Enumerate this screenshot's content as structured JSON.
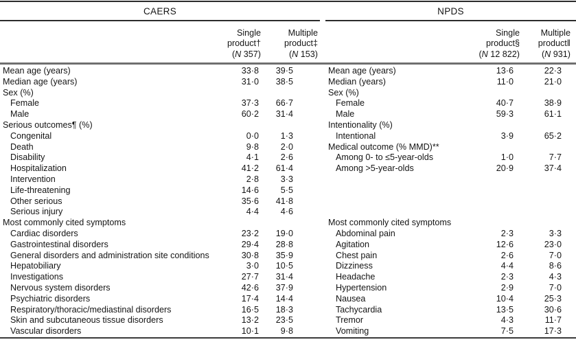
{
  "table": {
    "panels": [
      {
        "id": "caers",
        "title": "CAERS",
        "columns": [
          {
            "line1": "Single",
            "line2": "product†",
            "n_open": "(",
            "n_sym": "N",
            "n_rest": " 357)"
          },
          {
            "line1": "Multiple",
            "line2": "product‡",
            "n_open": "(",
            "n_sym": "N",
            "n_rest": " 153)"
          }
        ],
        "rows": [
          {
            "label": "Mean age (years)",
            "indent": 0,
            "values": [
              "33·8",
              "39·5"
            ]
          },
          {
            "label": "Median age (years)",
            "indent": 0,
            "values": [
              "31·0",
              "38·5"
            ]
          },
          {
            "label": "Sex (%)",
            "indent": 0,
            "values": [
              "",
              ""
            ]
          },
          {
            "label": "Female",
            "indent": 1,
            "values": [
              "37·3",
              "66·7"
            ]
          },
          {
            "label": "Male",
            "indent": 1,
            "values": [
              "60·2",
              "31·4"
            ]
          },
          {
            "label": "Serious outcomes¶ (%)",
            "indent": 0,
            "values": [
              "",
              ""
            ]
          },
          {
            "label": "Congenital",
            "indent": 1,
            "values": [
              "0·0",
              "1·3"
            ]
          },
          {
            "label": "Death",
            "indent": 1,
            "values": [
              "9·8",
              "2·0"
            ]
          },
          {
            "label": "Disability",
            "indent": 1,
            "values": [
              "4·1",
              "2·6"
            ]
          },
          {
            "label": "Hospitalization",
            "indent": 1,
            "values": [
              "41·2",
              "61·4"
            ]
          },
          {
            "label": "Intervention",
            "indent": 1,
            "values": [
              "2·8",
              "3·3"
            ]
          },
          {
            "label": "Life-threatening",
            "indent": 1,
            "values": [
              "14·6",
              "5·5"
            ]
          },
          {
            "label": "Other serious",
            "indent": 1,
            "values": [
              "35·6",
              "41·8"
            ]
          },
          {
            "label": "Serious injury",
            "indent": 1,
            "values": [
              "4·4",
              "4·6"
            ]
          },
          {
            "label": "Most commonly cited symptoms",
            "indent": 0,
            "values": [
              "",
              ""
            ]
          },
          {
            "label": "Cardiac disorders",
            "indent": 1,
            "values": [
              "23·2",
              "19·0"
            ]
          },
          {
            "label": "Gastrointestinal disorders",
            "indent": 1,
            "values": [
              "29·4",
              "28·8"
            ]
          },
          {
            "label": "General disorders and administration site conditions",
            "indent": 1,
            "values": [
              "30·8",
              "35·9"
            ]
          },
          {
            "label": "Hepatobiliary",
            "indent": 1,
            "values": [
              "3·0",
              "10·5"
            ]
          },
          {
            "label": "Investigations",
            "indent": 1,
            "values": [
              "27·7",
              "31·4"
            ]
          },
          {
            "label": "Nervous system disorders",
            "indent": 1,
            "values": [
              "42·6",
              "37·9"
            ]
          },
          {
            "label": "Psychiatric disorders",
            "indent": 1,
            "values": [
              "17·4",
              "14·4"
            ]
          },
          {
            "label": "Respiratory/thoracic/mediastinal disorders",
            "indent": 1,
            "values": [
              "16·5",
              "18·3"
            ]
          },
          {
            "label": "Skin and subcutaneous tissue disorders",
            "indent": 1,
            "values": [
              "13·2",
              "23·5"
            ]
          },
          {
            "label": "Vascular disorders",
            "indent": 1,
            "values": [
              "10·1",
              "9·8"
            ]
          }
        ]
      },
      {
        "id": "npds",
        "title": "NPDS",
        "columns": [
          {
            "line1": "Single",
            "line2": "product§",
            "n_open": "(",
            "n_sym": "N",
            "n_rest": " 12 822)"
          },
          {
            "line1": "Multiple",
            "line2": "product‖",
            "n_open": "(",
            "n_sym": "N",
            "n_rest": " 931)"
          }
        ],
        "rows": [
          {
            "label": "Mean age (years)",
            "indent": 0,
            "values": [
              "13·6",
              "22·3"
            ]
          },
          {
            "label": "Median (years)",
            "indent": 0,
            "values": [
              "11·0",
              "21·0"
            ]
          },
          {
            "label": "Sex (%)",
            "indent": 0,
            "values": [
              "",
              ""
            ]
          },
          {
            "label": "Female",
            "indent": 1,
            "values": [
              "40·7",
              "38·9"
            ]
          },
          {
            "label": "Male",
            "indent": 1,
            "values": [
              "59·3",
              "61·1"
            ]
          },
          {
            "label": "Intentionality (%)",
            "indent": 0,
            "values": [
              "",
              ""
            ]
          },
          {
            "label": "Intentional",
            "indent": 1,
            "values": [
              "3·9",
              "65·2"
            ]
          },
          {
            "label": "Medical outcome (% MMD)**",
            "indent": 0,
            "values": [
              "",
              ""
            ]
          },
          {
            "label": "Among 0- to ≤5-year-olds",
            "indent": 1,
            "values": [
              "1·0",
              "7·7"
            ]
          },
          {
            "label": "Among >5-year-olds",
            "indent": 1,
            "values": [
              "20·9",
              "37·4"
            ]
          },
          {
            "label": "",
            "indent": 0,
            "values": [
              "",
              ""
            ]
          },
          {
            "label": "",
            "indent": 0,
            "values": [
              "",
              ""
            ]
          },
          {
            "label": "",
            "indent": 0,
            "values": [
              "",
              ""
            ]
          },
          {
            "label": "",
            "indent": 0,
            "values": [
              "",
              ""
            ]
          },
          {
            "label": "Most commonly cited symptoms",
            "indent": 0,
            "values": [
              "",
              ""
            ]
          },
          {
            "label": "Abdominal pain",
            "indent": 1,
            "values": [
              "2·3",
              "3·3"
            ]
          },
          {
            "label": "Agitation",
            "indent": 1,
            "values": [
              "12·6",
              "23·0"
            ]
          },
          {
            "label": "Chest pain",
            "indent": 1,
            "values": [
              "2·6",
              "7·0"
            ]
          },
          {
            "label": "Dizziness",
            "indent": 1,
            "values": [
              "4·4",
              "8·6"
            ]
          },
          {
            "label": "Headache",
            "indent": 1,
            "values": [
              "2·3",
              "4·3"
            ]
          },
          {
            "label": "Hypertension",
            "indent": 1,
            "values": [
              "2·9",
              "7·0"
            ]
          },
          {
            "label": "Nausea",
            "indent": 1,
            "values": [
              "10·4",
              "25·3"
            ]
          },
          {
            "label": "Tachycardia",
            "indent": 1,
            "values": [
              "13·5",
              "30·6"
            ]
          },
          {
            "label": "Tremor",
            "indent": 1,
            "values": [
              "4·3",
              "11·7"
            ]
          },
          {
            "label": "Vomiting",
            "indent": 1,
            "values": [
              "7·5",
              "17·3"
            ]
          }
        ]
      }
    ],
    "colors": {
      "rule_dark": "#2b2b2b",
      "rule_mid_gray": "#6f6f6f",
      "text": "#141414",
      "background": "#ffffff"
    }
  }
}
